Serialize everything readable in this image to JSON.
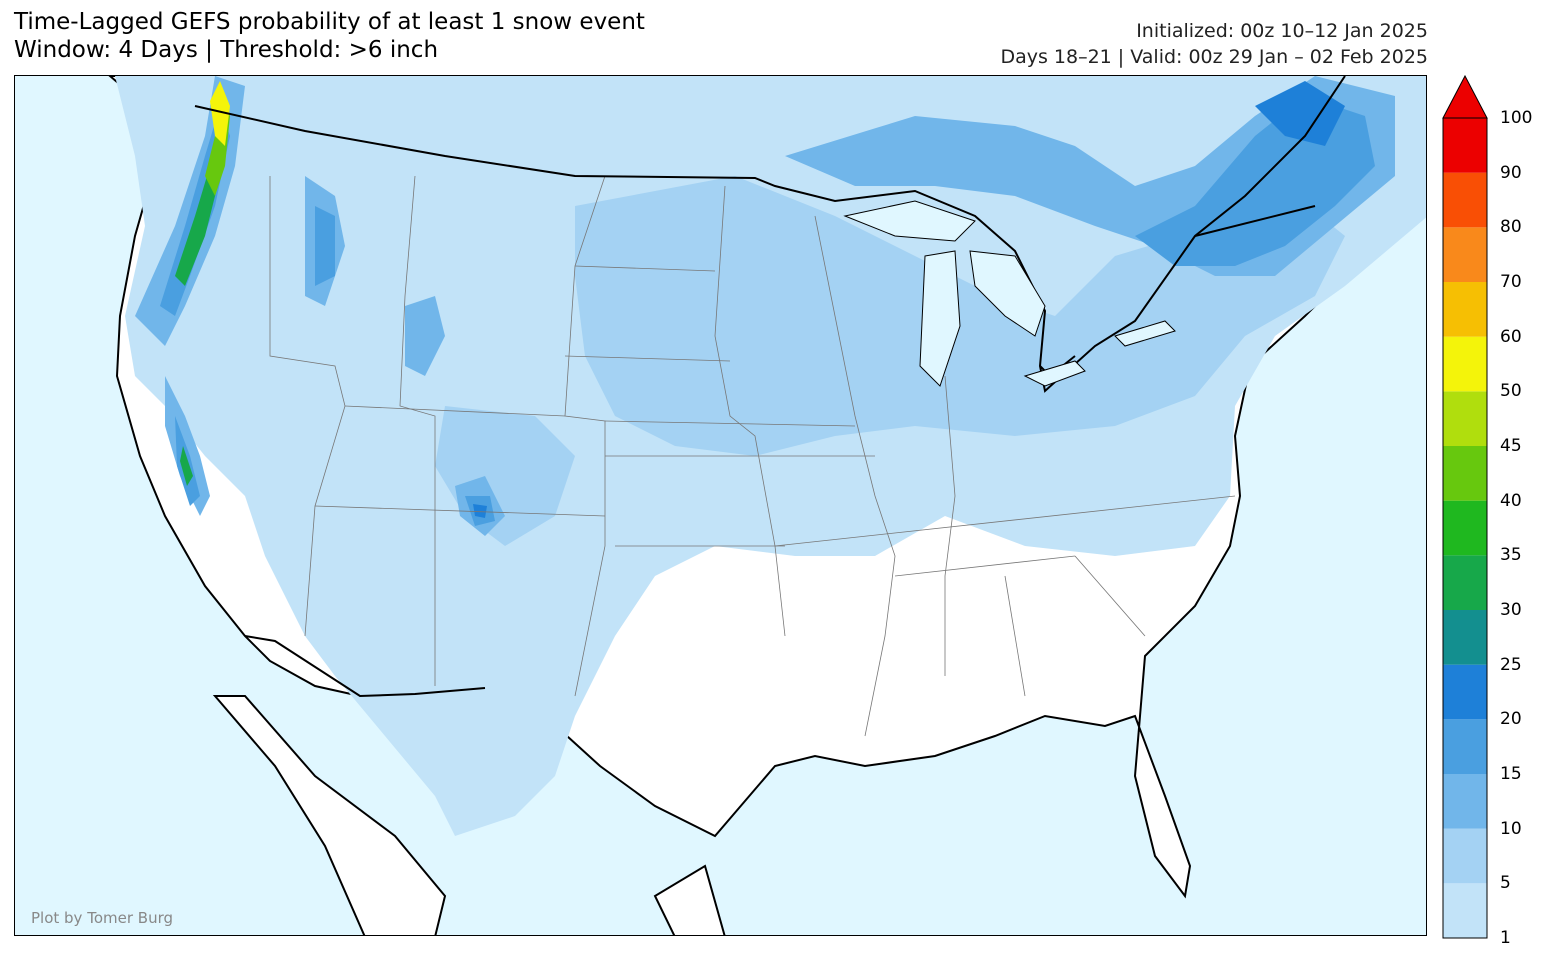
{
  "title": {
    "line1": "Time-Lagged GEFS probability of at least 1 snow event",
    "line2": "Window: 4 Days | Threshold: >6 inch"
  },
  "meta": {
    "initialized": "Initialized: 00z 10–12 Jan 2025",
    "valid": "Days 18–21 | Valid: 00z 29 Jan – 02 Feb 2025"
  },
  "credit": "Plot by Tomer Burg",
  "colors": {
    "ocean": "#e0f7ff",
    "land": "#ffffff"
  },
  "colorbar": {
    "levels": [
      "1",
      "5",
      "10",
      "15",
      "20",
      "25",
      "30",
      "35",
      "40",
      "45",
      "50",
      "60",
      "70",
      "80",
      "90",
      "100"
    ],
    "colors": [
      "#c2e3f8",
      "#a4d2f3",
      "#71b6ea",
      "#4a9fe0",
      "#1e80d8",
      "#138f8f",
      "#17a84a",
      "#1fb81f",
      "#67c80e",
      "#b0de0d",
      "#f4f40a",
      "#f6bf03",
      "#f9891b",
      "#f94f05",
      "#ec0000"
    ],
    "overflow_color": "#ec0000"
  }
}
